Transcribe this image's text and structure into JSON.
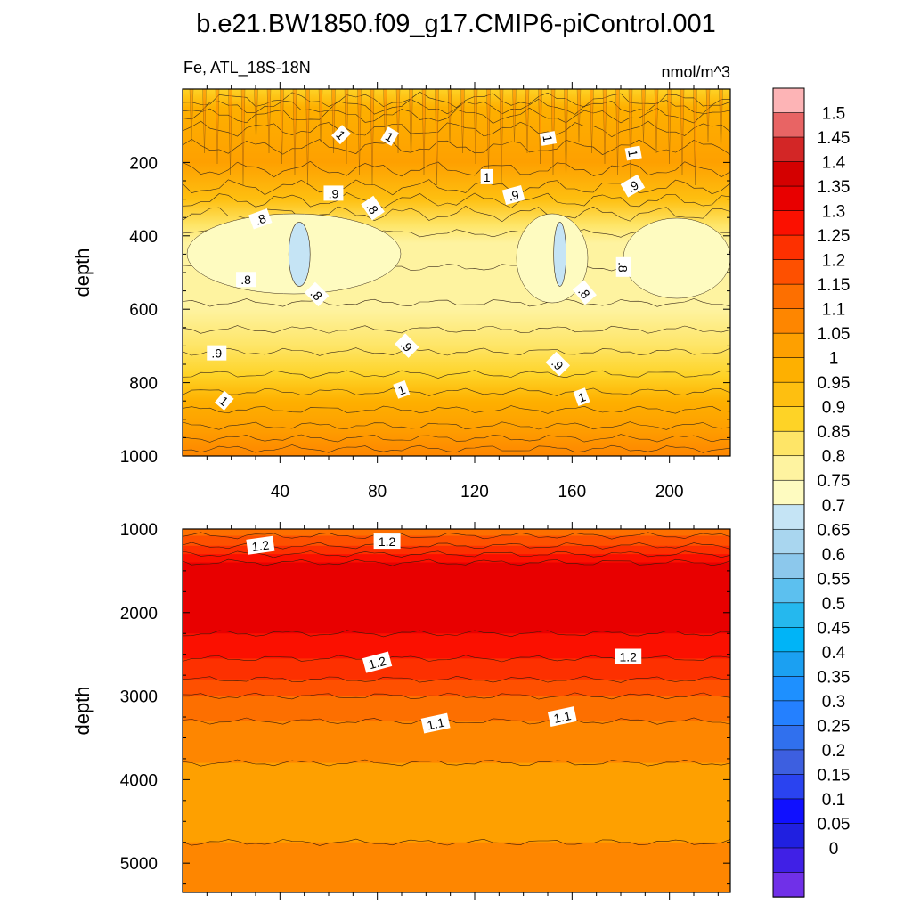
{
  "title": "b.e21.BW1850.f09_g17.CMIP6-piControl.001",
  "chart_data": [
    {
      "type": "heatmap",
      "panel": "upper",
      "subtitle_left": "Fe, ATL_18S-18N",
      "subtitle_right": "nmol/m^3",
      "ylabel": "depth",
      "xlim": [
        0,
        225
      ],
      "ylim": [
        1000,
        0
      ],
      "x_ticks": [
        40,
        80,
        120,
        160,
        200
      ],
      "y_ticks": [
        200,
        400,
        600,
        800,
        1000
      ],
      "contour_labels": [
        {
          "text": "1",
          "x": 65,
          "y": 125,
          "rot": 45
        },
        {
          "text": "1",
          "x": 85,
          "y": 130,
          "rot": 30
        },
        {
          "text": "1",
          "x": 150,
          "y": 135,
          "rot": 80
        },
        {
          "text": "1",
          "x": 185,
          "y": 175,
          "rot": 80
        },
        {
          "text": "1",
          "x": 125,
          "y": 240,
          "rot": 0
        },
        {
          "text": ".9",
          "x": 62,
          "y": 285,
          "rot": 0
        },
        {
          "text": ".9",
          "x": 136,
          "y": 290,
          "rot": -15
        },
        {
          "text": ".9",
          "x": 185,
          "y": 265,
          "rot": -30
        },
        {
          "text": ".8",
          "x": 32,
          "y": 355,
          "rot": -20
        },
        {
          "text": ".8",
          "x": 78,
          "y": 325,
          "rot": 55
        },
        {
          "text": ".8",
          "x": 26,
          "y": 520,
          "rot": 0
        },
        {
          "text": ".8",
          "x": 55,
          "y": 560,
          "rot": 45
        },
        {
          "text": ".8",
          "x": 181,
          "y": 485,
          "rot": 90
        },
        {
          "text": ".8",
          "x": 165,
          "y": 555,
          "rot": 50
        },
        {
          "text": ".9",
          "x": 14,
          "y": 720,
          "rot": 0
        },
        {
          "text": ".9",
          "x": 92,
          "y": 700,
          "rot": 45
        },
        {
          "text": ".9",
          "x": 154,
          "y": 750,
          "rot": 45
        },
        {
          "text": "1",
          "x": 17,
          "y": 850,
          "rot": 40
        },
        {
          "text": "1",
          "x": 90,
          "y": 820,
          "rot": -20
        },
        {
          "text": "1",
          "x": 164,
          "y": 840,
          "rot": -20
        }
      ],
      "low_patches": [
        {
          "x": 48,
          "y": 450,
          "value": 0.7
        },
        {
          "x": 155,
          "y": 450,
          "value": 0.7
        }
      ]
    },
    {
      "type": "heatmap",
      "panel": "lower",
      "ylabel": "depth",
      "xlim": [
        0,
        225
      ],
      "ylim": [
        5350,
        1000
      ],
      "y_ticks": [
        1000,
        2000,
        3000,
        4000,
        5000
      ],
      "contour_labels": [
        {
          "text": "1.2",
          "x": 32,
          "y": 1200,
          "rot": -8
        },
        {
          "text": "1.2",
          "x": 84,
          "y": 1150,
          "rot": 0
        },
        {
          "text": "1.2",
          "x": 80,
          "y": 2600,
          "rot": -15
        },
        {
          "text": "1.2",
          "x": 183,
          "y": 2530,
          "rot": 0
        },
        {
          "text": "1.1",
          "x": 104,
          "y": 3330,
          "rot": -12
        },
        {
          "text": "1.1",
          "x": 156,
          "y": 3250,
          "rot": -12
        }
      ]
    }
  ],
  "colorbar": {
    "labels": [
      "1.5",
      "1.45",
      "1.4",
      "1.35",
      "1.3",
      "1.25",
      "1.2",
      "1.15",
      "1.1",
      "1.05",
      "1",
      "0.95",
      "0.9",
      "0.85",
      "0.8",
      "0.75",
      "0.7",
      "0.65",
      "0.6",
      "0.55",
      "0.5",
      "0.45",
      "0.4",
      "0.35",
      "0.3",
      "0.25",
      "0.2",
      "0.15",
      "0.1",
      "0.05",
      "0"
    ],
    "colors": [
      "#fdb4b6",
      "#e86464",
      "#d32626",
      "#d40000",
      "#e80000",
      "#fb1000",
      "#fd3000",
      "#fe5000",
      "#fd6f00",
      "#fe8600",
      "#fea000",
      "#feb000",
      "#febf10",
      "#fed326",
      "#fee567",
      "#fef3a0",
      "#fefbc0",
      "#c5e4f5",
      "#a9d6ef",
      "#8cc8ec",
      "#5cc0ef",
      "#25b8ee",
      "#00b4f7",
      "#1ba0f2",
      "#1e90ff",
      "#2480ff",
      "#3070ee",
      "#3d5fe0",
      "#2a43f0",
      "#1010ff",
      "#2020e0",
      "#4020e6",
      "#7030e8"
    ]
  }
}
